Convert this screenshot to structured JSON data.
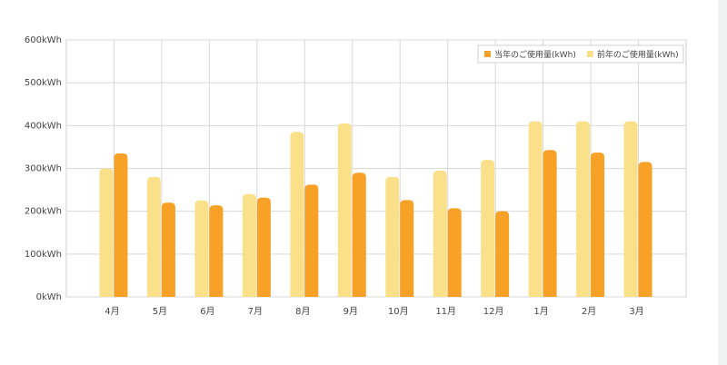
{
  "chart_data": {
    "type": "bar",
    "categories": [
      "4月",
      "5月",
      "6月",
      "7月",
      "8月",
      "9月",
      "10月",
      "11月",
      "12月",
      "1月",
      "2月",
      "3月"
    ],
    "series": [
      {
        "name": "当年のご使用量(kWh)",
        "color": "#f7a126",
        "values": [
          335,
          220,
          214,
          232,
          262,
          290,
          226,
          207,
          200,
          343,
          337,
          315
        ]
      },
      {
        "name": "前年のご使用量(kWh)",
        "color": "#fbe08a",
        "values": [
          300,
          280,
          225,
          240,
          385,
          405,
          280,
          295,
          320,
          410,
          410,
          410
        ]
      }
    ],
    "ylim": [
      0,
      600
    ],
    "yticks": [
      {
        "value": 0,
        "label": "0kWh"
      },
      {
        "value": 100,
        "label": "100kWh"
      },
      {
        "value": 200,
        "label": "200kWh"
      },
      {
        "value": 300,
        "label": "300kWh"
      },
      {
        "value": 400,
        "label": "400kWh"
      },
      {
        "value": 500,
        "label": "500kWh"
      },
      {
        "value": 600,
        "label": "600kWh"
      }
    ],
    "grid": true,
    "legend": "top-right"
  }
}
